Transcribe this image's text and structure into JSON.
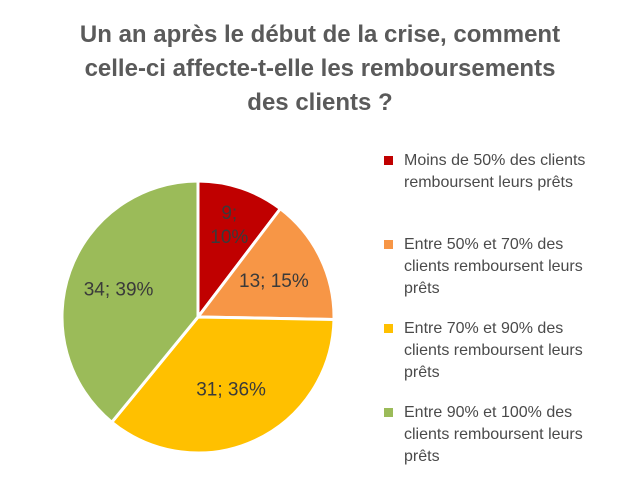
{
  "title_lines": [
    "Un an après le début de la crise, comment",
    "celle-ci affecte-t-elle les remboursements",
    "des clients ?"
  ],
  "chart_data": {
    "type": "pie",
    "title": "Un an après le début de la crise, comment celle-ci affecte-t-elle les remboursements des clients ?",
    "legend_position": "right",
    "slices": [
      {
        "name": "Moins de 50% des clients remboursent leurs prêts",
        "legend_lines": [
          "Moins de 50% des clients",
          "remboursent leurs prêts"
        ],
        "value": 9,
        "percent": "10%",
        "label_lines": [
          "9;",
          "10%"
        ],
        "color": "#c00000"
      },
      {
        "name": "Entre 50% et 70% des clients remboursent leurs prêts",
        "legend_lines": [
          "Entre 50% et 70% des",
          "clients remboursent leurs",
          "prêts"
        ],
        "value": 13,
        "percent": "15%",
        "label_lines": [
          "13; 15%"
        ],
        "color": "#f79646"
      },
      {
        "name": "Entre 70% et 90% des clients remboursent leurs prêts",
        "legend_lines": [
          "Entre 70% et 90% des",
          "clients remboursent leurs",
          "prêts"
        ],
        "value": 31,
        "percent": "36%",
        "label_lines": [
          "31; 36%"
        ],
        "color": "#ffc000"
      },
      {
        "name": "Entre 90% et 100% des clients remboursent leurs prêts",
        "legend_lines": [
          "Entre 90% et 100% des",
          "clients remboursent leurs",
          "prêts"
        ],
        "value": 34,
        "percent": "39%",
        "label_lines": [
          "34; 39%"
        ],
        "color": "#9bbb59"
      }
    ]
  }
}
